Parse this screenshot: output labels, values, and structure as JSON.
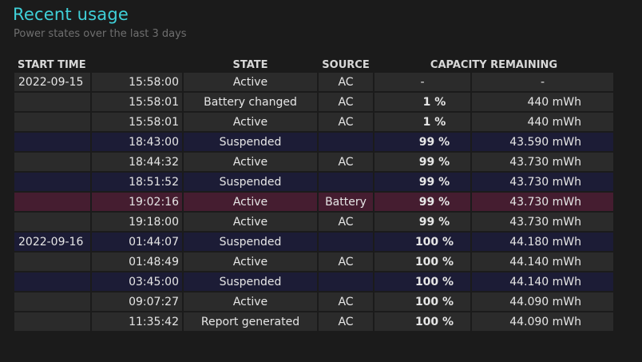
{
  "page": {
    "title": "Recent usage",
    "subtitle": "Power states over the last 3 days"
  },
  "table": {
    "headers": {
      "start_time": "START TIME",
      "state": "STATE",
      "source": "SOURCE",
      "capacity": "CAPACITY REMAINING"
    },
    "rows": [
      {
        "date": "2022-09-15",
        "time": "15:58:00",
        "state": "Active",
        "source": "AC",
        "percent": "-",
        "capacity": "-",
        "kind": "active"
      },
      {
        "date": "",
        "time": "15:58:01",
        "state": "Battery changed",
        "source": "AC",
        "percent": "1 %",
        "capacity": "440 mWh",
        "kind": "active"
      },
      {
        "date": "",
        "time": "15:58:01",
        "state": "Active",
        "source": "AC",
        "percent": "1 %",
        "capacity": "440 mWh",
        "kind": "active"
      },
      {
        "date": "",
        "time": "18:43:00",
        "state": "Suspended",
        "source": "",
        "percent": "99 %",
        "capacity": "43.590 mWh",
        "kind": "suspended"
      },
      {
        "date": "",
        "time": "18:44:32",
        "state": "Active",
        "source": "AC",
        "percent": "99 %",
        "capacity": "43.730 mWh",
        "kind": "active"
      },
      {
        "date": "",
        "time": "18:51:52",
        "state": "Suspended",
        "source": "",
        "percent": "99 %",
        "capacity": "43.730 mWh",
        "kind": "suspended"
      },
      {
        "date": "",
        "time": "19:02:16",
        "state": "Active",
        "source": "Battery",
        "percent": "99 %",
        "capacity": "43.730 mWh",
        "kind": "battery"
      },
      {
        "date": "",
        "time": "19:18:00",
        "state": "Active",
        "source": "AC",
        "percent": "99 %",
        "capacity": "43.730 mWh",
        "kind": "active"
      },
      {
        "date": "2022-09-16",
        "time": "01:44:07",
        "state": "Suspended",
        "source": "",
        "percent": "100 %",
        "capacity": "44.180 mWh",
        "kind": "suspended"
      },
      {
        "date": "",
        "time": "01:48:49",
        "state": "Active",
        "source": "AC",
        "percent": "100 %",
        "capacity": "44.140 mWh",
        "kind": "active"
      },
      {
        "date": "",
        "time": "03:45:00",
        "state": "Suspended",
        "source": "",
        "percent": "100 %",
        "capacity": "44.140 mWh",
        "kind": "suspended"
      },
      {
        "date": "",
        "time": "09:07:27",
        "state": "Active",
        "source": "AC",
        "percent": "100 %",
        "capacity": "44.090 mWh",
        "kind": "active"
      },
      {
        "date": "",
        "time": "11:35:42",
        "state": "Report generated",
        "source": "AC",
        "percent": "100 %",
        "capacity": "44.090 mWh",
        "kind": "active"
      }
    ]
  },
  "colors": {
    "title": "#3fd0d8",
    "row_active": "#2b2b2b",
    "row_suspended": "#1c1c36",
    "row_battery": "#451d30"
  }
}
